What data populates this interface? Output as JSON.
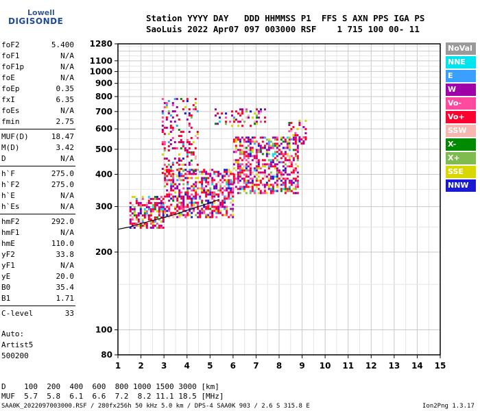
{
  "logo": {
    "line1": "Lowell",
    "line2": "DIGISONDE"
  },
  "header": {
    "line1": "Station YYYY DAY   DDD HHMMSS P1  FFS S AXN PPS IGA PS",
    "line2": "SaoLuis 2022 Apr07 097 003000 RSF    1 715 100 00- 11"
  },
  "params": [
    {
      "name": "foF2",
      "value": "5.400"
    },
    {
      "name": "foF1",
      "value": "N/A"
    },
    {
      "name": "foF1p",
      "value": "N/A"
    },
    {
      "name": "foE",
      "value": "N/A"
    },
    {
      "name": "foEp",
      "value": "0.35"
    },
    {
      "name": "fxI",
      "value": "6.35"
    },
    {
      "name": "foEs",
      "value": "N/A"
    },
    {
      "name": "fmin",
      "value": "2.75"
    },
    {
      "name": "MUF(D)",
      "value": "18.47"
    },
    {
      "name": "M(D)",
      "value": "3.42"
    },
    {
      "name": "D",
      "value": "N/A"
    },
    {
      "name": "h`F",
      "value": "275.0"
    },
    {
      "name": "h`F2",
      "value": "275.0"
    },
    {
      "name": "h`E",
      "value": "N/A"
    },
    {
      "name": "h`Es",
      "value": "N/A"
    },
    {
      "name": "hmF2",
      "value": "292.0"
    },
    {
      "name": "hmF1",
      "value": "N/A"
    },
    {
      "name": "hmE",
      "value": "110.0"
    },
    {
      "name": "yF2",
      "value": "33.8"
    },
    {
      "name": "yF1",
      "value": "N/A"
    },
    {
      "name": "yE",
      "value": "20.0"
    },
    {
      "name": "B0",
      "value": "35.4"
    },
    {
      "name": "B1",
      "value": "1.71"
    },
    {
      "name": "C-level",
      "value": "33"
    }
  ],
  "autoscale": {
    "line1": "Auto:",
    "line2": "Artist5",
    "line3": "500200"
  },
  "legend": [
    {
      "label": "NoVal",
      "color": "#9a9a9a"
    },
    {
      "label": "NNE",
      "color": "#00e4f0"
    },
    {
      "label": "E",
      "color": "#3aa0ff"
    },
    {
      "label": "W",
      "color": "#a000a8"
    },
    {
      "label": "Vo-",
      "color": "#ff4aa0"
    },
    {
      "label": "Vo+",
      "color": "#ff0030"
    },
    {
      "label": "SSW",
      "color": "#f7b6b0"
    },
    {
      "label": "X-",
      "color": "#008a00"
    },
    {
      "label": "X+",
      "color": "#80bb50"
    },
    {
      "label": "SSE",
      "color": "#d8d800"
    },
    {
      "label": "NNW",
      "color": "#1a1ad0"
    }
  ],
  "muf_table": {
    "d_line": "D    100  200  400  600  800 1000 1500 3000 [km]",
    "muf_line": "MUF  5.7  5.8  6.1  6.6  7.2  8.2 11.1 18.5 [MHz]"
  },
  "footer": {
    "left": "SAA0K_2022097003000.RSF / 280fx256h 50 kHz 5.0 km / DPS-4 SAA0K 903 / 2.6 S 315.8 E",
    "right": "Ion2Png 1.3.17"
  },
  "chart_data": {
    "type": "scatter",
    "xlim": [
      1,
      15
    ],
    "ylim": [
      80,
      1280
    ],
    "y_scale": "log",
    "x_ticks": [
      1,
      2,
      3,
      4,
      5,
      6,
      7,
      8,
      9,
      10,
      11,
      12,
      13,
      14,
      15
    ],
    "y_ticks": [
      80,
      100,
      200,
      300,
      400,
      500,
      600,
      700,
      800,
      900,
      1000,
      1100,
      1280
    ],
    "grid": true,
    "trace_curve": {
      "x": [
        1.0,
        1.5,
        2.0,
        2.5,
        3.0,
        3.5,
        4.0,
        4.5,
        5.0,
        5.4
      ],
      "y": [
        245,
        250,
        258,
        265,
        272,
        280,
        290,
        300,
        310,
        320
      ]
    },
    "clusters": [
      {
        "name": "F-trace-low",
        "x": [
          1.5,
          3.0
        ],
        "y": [
          250,
          330
        ],
        "density": 0.5
      },
      {
        "name": "F-trace-mid",
        "x": [
          3.0,
          6.0
        ],
        "y": [
          275,
          420
        ],
        "density": 0.55
      },
      {
        "name": "F-trace-high",
        "x": [
          6.0,
          8.8
        ],
        "y": [
          340,
          560
        ],
        "density": 0.5
      },
      {
        "name": "F-spread-upper",
        "x": [
          2.9,
          4.5
        ],
        "y": [
          400,
          790
        ],
        "density": 0.22
      },
      {
        "name": "F2-second-hop",
        "x": [
          5.2,
          7.4
        ],
        "y": [
          620,
          720
        ],
        "density": 0.3
      },
      {
        "name": "near-foF2",
        "x": [
          8.4,
          9.2
        ],
        "y": [
          520,
          650
        ],
        "density": 0.3
      }
    ]
  }
}
